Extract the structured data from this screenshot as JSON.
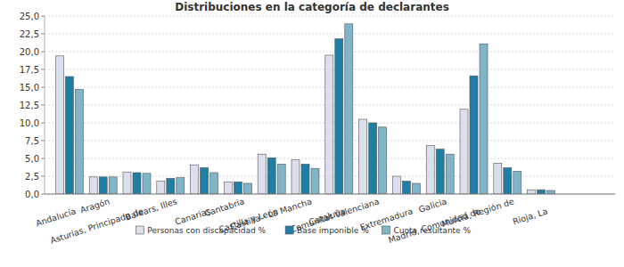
{
  "chart_data": {
    "type": "bar",
    "title": "Distribuciones en la categoría de declarantes",
    "categories": [
      "Andalucía",
      "Aragón",
      "Asturias, Principado de",
      "Balears, Illes",
      "Canarias",
      "Cantabria",
      "Castilla y León",
      "Castilla - La Mancha",
      "Cataluña",
      "Comunitat Valenciana",
      "Extremadura",
      "Galicia",
      "Madrid, Comunidad de",
      "Murcia, Región de",
      "Rioja, La"
    ],
    "series": [
      {
        "name": "Personas con discapacidad %",
        "color": "#dcdfee",
        "values": [
          19.4,
          2.4,
          3.1,
          1.8,
          4.1,
          1.7,
          5.6,
          4.8,
          19.5,
          10.5,
          2.5,
          6.8,
          11.9,
          4.3,
          0.6
        ]
      },
      {
        "name": "Base imponible %",
        "color": "#1f7ea6",
        "values": [
          16.5,
          2.4,
          3.0,
          2.2,
          3.7,
          1.7,
          5.1,
          4.2,
          21.8,
          10.0,
          1.8,
          6.3,
          16.6,
          3.7,
          0.6
        ]
      },
      {
        "name": "Cuota resultante %",
        "color": "#80b4c9",
        "values": [
          14.7,
          2.4,
          2.9,
          2.3,
          3.0,
          1.5,
          4.2,
          3.6,
          23.9,
          9.4,
          1.5,
          5.6,
          21.1,
          3.2,
          0.5
        ]
      }
    ],
    "ylim": [
      0,
      25
    ],
    "yticks": [
      {
        "value": 0,
        "label": "0,0"
      },
      {
        "value": 2.5,
        "label": "2,5"
      },
      {
        "value": 5,
        "label": "5,0"
      },
      {
        "value": 7.5,
        "label": "7,5"
      },
      {
        "value": 10,
        "label": "10,0"
      },
      {
        "value": 12.5,
        "label": "12,5"
      },
      {
        "value": 15,
        "label": "15,0"
      },
      {
        "value": 17.5,
        "label": "17,5"
      },
      {
        "value": 20,
        "label": "20,0"
      },
      {
        "value": 22.5,
        "label": "22,5"
      },
      {
        "value": 25,
        "label": "25,0"
      }
    ],
    "grid": true,
    "legend": "bottom"
  }
}
